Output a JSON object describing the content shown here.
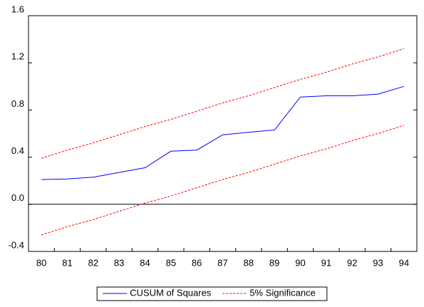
{
  "chart_data": {
    "type": "line",
    "categories": [
      "80",
      "81",
      "82",
      "83",
      "84",
      "85",
      "86",
      "87",
      "88",
      "89",
      "90",
      "91",
      "92",
      "93",
      "94"
    ],
    "series": [
      {
        "name": "CUSUM of Squares",
        "color": "#0000ff",
        "dash": false,
        "values": [
          0.21,
          0.215,
          0.23,
          0.27,
          0.31,
          0.45,
          0.46,
          0.59,
          0.61,
          0.63,
          0.91,
          0.92,
          0.92,
          0.935,
          1.0
        ]
      },
      {
        "name": "5% Significance",
        "color": "#ff0000",
        "dash": true,
        "values": [
          0.39,
          0.46,
          0.52,
          0.59,
          0.66,
          0.72,
          0.79,
          0.86,
          0.92,
          0.99,
          1.06,
          1.12,
          1.19,
          1.25,
          1.32
        ]
      },
      {
        "color": "#ff0000",
        "dash": true,
        "values": [
          -0.26,
          -0.19,
          -0.13,
          -0.06,
          0.01,
          0.07,
          0.14,
          0.21,
          0.27,
          0.34,
          0.41,
          0.47,
          0.54,
          0.6,
          0.67
        ]
      }
    ],
    "ylim": [
      -0.4,
      1.6
    ],
    "yticks": [
      1.6,
      1.2,
      0.8,
      0.4,
      {
        "value": 0,
        "label": "0.0"
      },
      -0.4
    ],
    "zero_line": true,
    "legend": "bottom"
  }
}
